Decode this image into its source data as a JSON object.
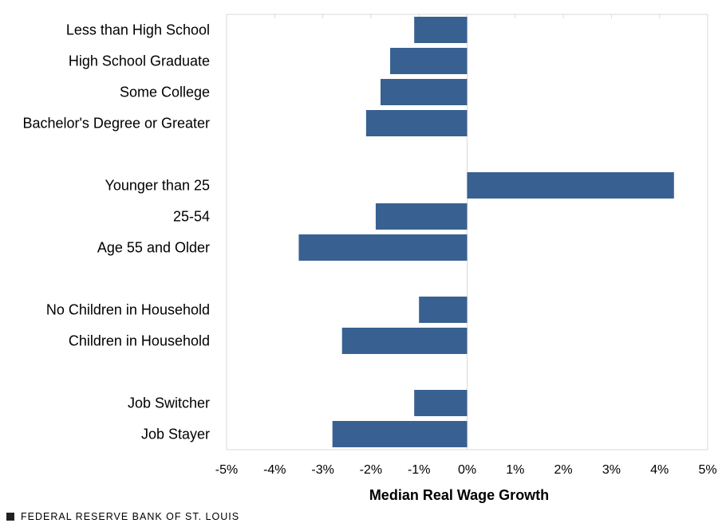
{
  "chart_data": {
    "type": "bar",
    "orientation": "horizontal",
    "categories": [
      "Less than High School",
      "High School Graduate",
      "Some College",
      "Bachelor's Degree or Greater",
      "Younger than 25",
      "25-54",
      "Age 55 and Older",
      "No Children in Household",
      "Children in Household",
      "Job Switcher",
      "Job Stayer"
    ],
    "groups": [
      [
        0,
        1,
        2,
        3
      ],
      [
        4,
        5,
        6
      ],
      [
        7,
        8
      ],
      [
        9,
        10
      ]
    ],
    "values": [
      -1.1,
      -1.6,
      -1.8,
      -2.1,
      4.3,
      -1.9,
      -3.5,
      -1.0,
      -2.6,
      -1.1,
      -2.8
    ],
    "xlabel": "Median Real Wage Growth",
    "ylabel": "",
    "xlim": [
      -5,
      5
    ],
    "xticks": [
      -5,
      -4,
      -3,
      -2,
      -1,
      0,
      1,
      2,
      3,
      4,
      5
    ],
    "xtick_labels": [
      "-5%",
      "-4%",
      "-3%",
      "-2%",
      "-1%",
      "0%",
      "1%",
      "2%",
      "3%",
      "4%",
      "5%"
    ],
    "grid": false,
    "bar_color": "#386191"
  },
  "source": "FEDERAL RESERVE BANK OF ST. LOUIS"
}
